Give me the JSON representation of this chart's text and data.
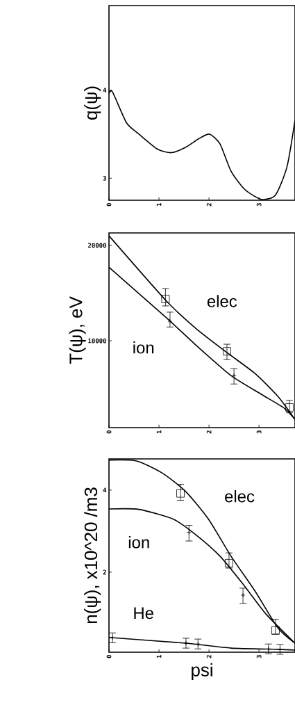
{
  "chart_data": [
    {
      "type": "line",
      "ylabel": "q(ψ)",
      "xlim": [
        0,
        3.72
      ],
      "ylim": [
        2.75,
        4.96
      ],
      "xticks": [
        0,
        1,
        2,
        3
      ],
      "yticks": [
        3,
        4
      ],
      "series": [
        {
          "color": "#000000",
          "x": [
            0,
            0.07,
            0.35,
            0.6,
            0.97,
            1.25,
            1.53,
            1.8,
            2.01,
            2.22,
            2.44,
            2.72,
            3.05,
            3.33,
            3.56,
            3.72
          ],
          "values": [
            3.96,
            3.98,
            3.63,
            3.5,
            3.33,
            3.29,
            3.35,
            3.45,
            3.5,
            3.39,
            3.08,
            2.87,
            2.76,
            2.81,
            3.13,
            3.66
          ]
        }
      ]
    },
    {
      "type": "line",
      "ylabel": "T(ψ), eV",
      "xlim": [
        0,
        3.72
      ],
      "ylim": [
        900,
        21300
      ],
      "xticks": [
        0,
        1,
        2,
        3
      ],
      "yticks": [
        10000,
        20000
      ],
      "series": [
        {
          "name": "elec",
          "color": "#000000",
          "x": [
            0,
            1.15,
            1.75,
            2.36,
            2.92,
            3.38,
            3.72
          ],
          "values": [
            21000,
            14160,
            11240,
            8760,
            6570,
            4160,
            1750
          ]
        },
        {
          "name": "ion",
          "color": "#000000",
          "x": [
            0,
            1.15,
            1.75,
            2.44,
            3.05,
            3.51,
            3.72
          ],
          "values": [
            17700,
            12400,
            9490,
            6350,
            4380,
            2920,
            1750
          ]
        },
        {
          "type": "scatter",
          "marker": "square",
          "color": "#000000",
          "x": [
            1.13,
            2.36,
            3.61
          ],
          "values": [
            14380,
            8900,
            3020
          ],
          "errors": [
            [
              13650,
              15470
            ],
            [
              8030,
              9640
            ],
            [
              2450,
              3760
            ]
          ]
        },
        {
          "type": "scatter",
          "marker": "cross",
          "color": "#000000",
          "x": [
            1.22,
            2.5
          ],
          "values": [
            12040,
            6350
          ],
          "errors": [
            [
              11440,
              13000
            ],
            [
              5470,
              7070
            ]
          ]
        }
      ]
    },
    {
      "type": "line",
      "ylabel": "n(ψ), x10^20 /m3",
      "xlabel": "psi",
      "xlim": [
        0,
        3.72
      ],
      "ylim": [
        0.05,
        4.76
      ],
      "xticks": [
        0,
        1,
        2,
        3
      ],
      "yticks": [
        2,
        4
      ],
      "series": [
        {
          "name": "elec",
          "color": "#000000",
          "x": [
            0,
            0.55,
            1.06,
            1.53,
            1.99,
            2.44,
            2.92,
            3.38,
            3.72
          ],
          "values": [
            4.73,
            4.71,
            4.42,
            3.97,
            3.29,
            2.39,
            1.54,
            0.64,
            0.27
          ]
        },
        {
          "name": "ion",
          "color": "#000000",
          "x": [
            0,
            0.6,
            1.29,
            1.75,
            2.22,
            2.68,
            3.14,
            3.72
          ],
          "values": [
            3.54,
            3.53,
            3.29,
            2.9,
            2.39,
            1.71,
            0.98,
            0.27
          ]
        },
        {
          "name": "He",
          "color": "#000000",
          "x": [
            0,
            1.53,
            2.44,
            3.38,
            3.72
          ],
          "values": [
            0.41,
            0.27,
            0.15,
            0.12,
            0.1
          ]
        },
        {
          "type": "scatter",
          "marker": "square",
          "color": "#000000",
          "x": [
            1.43,
            2.4,
            3.33
          ],
          "values": [
            3.92,
            2.22,
            0.58
          ],
          "errors": [
            [
              3.75,
              4.14
            ],
            [
              2.1,
              2.47
            ],
            [
              0.49,
              0.85
            ]
          ]
        },
        {
          "type": "scatter",
          "marker": "cross",
          "color": "#000000",
          "x": [
            1.6,
            2.68
          ],
          "values": [
            2.97,
            1.44
          ],
          "errors": [
            [
              2.76,
              3.14
            ],
            [
              1.24,
              1.61
            ]
          ]
        },
        {
          "type": "scatter",
          "marker": "cross",
          "color": "#000000",
          "x": [
            0.07,
            1.54,
            1.78,
            3.19,
            3.42
          ],
          "values": [
            0.4,
            0.27,
            0.25,
            0.13,
            0.12
          ],
          "errors": [
            0.12,
            0.12,
            0.12,
            0.12,
            0.12
          ]
        }
      ]
    }
  ]
}
